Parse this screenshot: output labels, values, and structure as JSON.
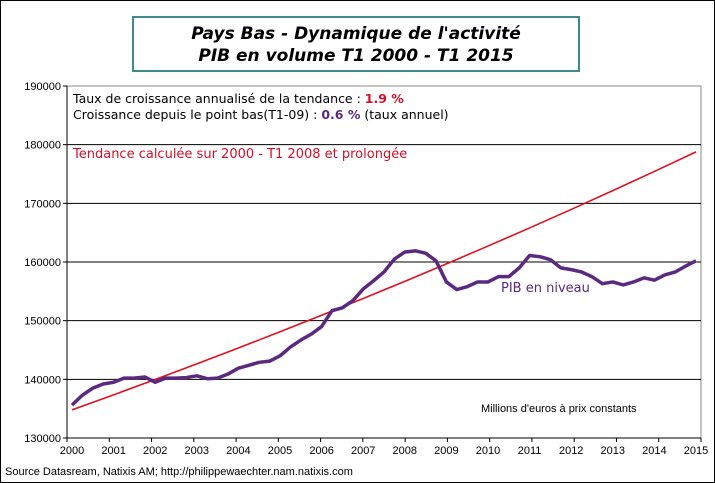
{
  "title": {
    "line1": "Pays Bas - Dynamique de l'activité",
    "line2": "PIB en volume T1 2000 - T1 2015"
  },
  "info": {
    "trend_rate_label": "Taux de croissance annualisé de la tendance :",
    "trend_rate_value": "1.9 %",
    "since_low_label": "Croissance depuis le point bas(T1-09) :",
    "since_low_value": "0.6 %",
    "since_low_suffix": "(taux annuel)",
    "trend_note": "Tendance calculée sur 2000 - T1 2008 et prolongée"
  },
  "unit_note": "Millions d'euros à prix constants",
  "source": "Source Datasream, Natixis AM;  http://philippewaechter.nam.natixis.com",
  "colors": {
    "pib": "#5b2a7e",
    "trend": "#e0101e",
    "title_border": "#3f8a8c"
  },
  "chart_data": {
    "type": "line",
    "title": "Pays Bas - Dynamique de l'activité PIB en volume T1 2000 - T1 2015",
    "ylim": [
      130000,
      190000
    ],
    "yticks": [
      "130000",
      "140000",
      "150000",
      "160000",
      "170000",
      "180000",
      "190000"
    ],
    "xticks": [
      "2000",
      "2001",
      "2002",
      "2003",
      "2004",
      "2005",
      "2006",
      "2007",
      "2008",
      "2009",
      "2010",
      "2011",
      "2012",
      "2013",
      "2014",
      "2015"
    ],
    "grid": "horizontal",
    "series": [
      {
        "name": "PIB en niveau",
        "frequency": "quarterly",
        "start": "2000 T1",
        "values": [
          135600,
          137300,
          138500,
          139200,
          139500,
          140200,
          140200,
          140400,
          139500,
          140200,
          140200,
          140300,
          140600,
          140100,
          140200,
          140900,
          141900,
          142400,
          142900,
          143100,
          144000,
          145500,
          146700,
          147700,
          149000,
          151700,
          152200,
          153400,
          155400,
          156800,
          158300,
          160500,
          161700,
          161900,
          161500,
          160200,
          156600,
          155300,
          155800,
          156600,
          156600,
          157500,
          157500,
          159000,
          161100,
          160900,
          160400,
          159000,
          158700,
          158300,
          157500,
          156300,
          156600,
          156100,
          156600,
          157300,
          156900,
          157800,
          158300,
          159300,
          160200
        ]
      },
      {
        "name": "Tendance",
        "frequency": "annual",
        "start": "2000 T1",
        "values": [
          134800,
          137361,
          139971,
          142630,
          145340,
          148102,
          150916,
          153783,
          156705,
          159682,
          162716,
          165808,
          168958,
          172168,
          175439,
          178773
        ]
      }
    ]
  }
}
